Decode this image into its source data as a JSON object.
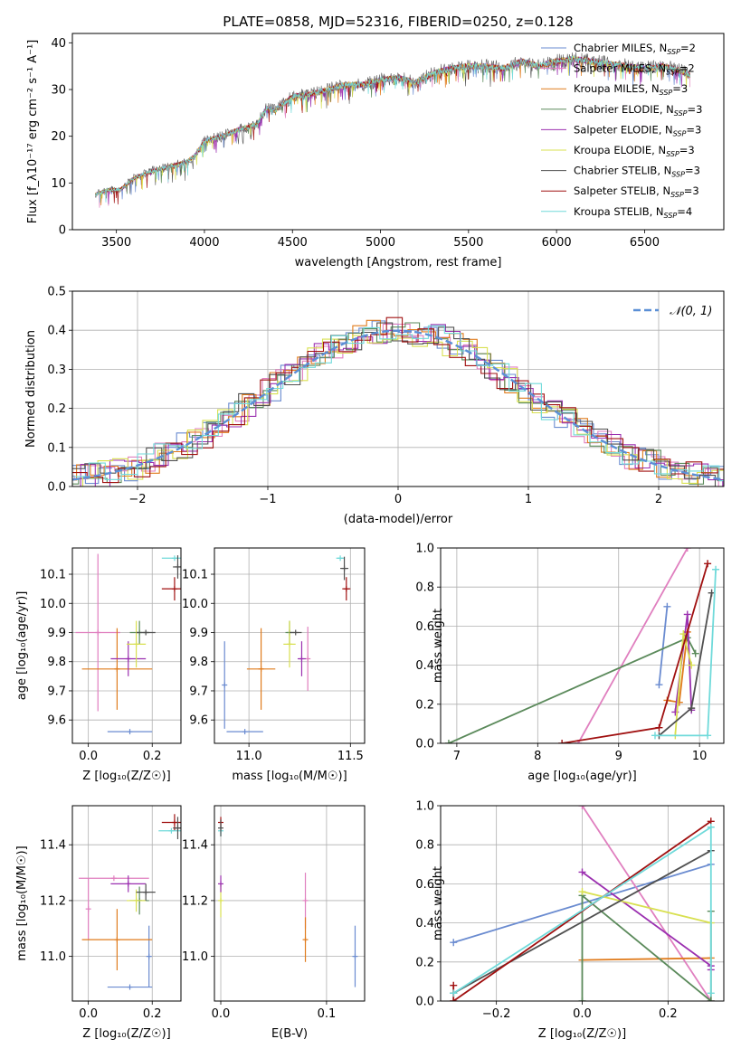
{
  "title": "PLATE=0858, MJD=52316, FIBERID=0250, z=0.128",
  "colors": {
    "chabrier_miles": "#6a8bd0",
    "salpeter_miles": "#e07fbf",
    "kroupa_miles": "#e07b1c",
    "chabrier_elodie": "#5b8a5b",
    "salpeter_elodie": "#9b30b0",
    "kroupa_elodie": "#d8e050",
    "chabrier_stelib": "#505050",
    "salpeter_stelib": "#a01010",
    "kroupa_stelib": "#70dada",
    "gauss": "#5b8fd6",
    "grid": "#b0b0b0"
  },
  "chart_data": [
    {
      "type": "line",
      "panel": "spectrum",
      "title": "PLATE=0858, MJD=52316, FIBERID=0250, z=0.128",
      "xlabel": "wavelength [Angstrom, rest frame]",
      "ylabel": "Flux [f_λ10⁻¹⁷ erg cm⁻² s⁻¹ A⁻¹]",
      "xlim": [
        3250,
        6950
      ],
      "ylim": [
        0,
        42
      ],
      "xticks": [
        3500,
        4000,
        4500,
        5000,
        5500,
        6000,
        6500
      ],
      "yticks": [
        0,
        10,
        20,
        30,
        40
      ],
      "grid": false,
      "legend_position": "top-right",
      "legend": [
        {
          "label": "Chabrier MILES, N",
          "sub": "SSP",
          "tail": "=2",
          "color_key": "chabrier_miles"
        },
        {
          "label": "Salpeter MILES, N",
          "sub": "SSP",
          "tail": "=2",
          "color_key": "salpeter_miles"
        },
        {
          "label": "Kroupa MILES, N",
          "sub": "SSP",
          "tail": "=3",
          "color_key": "kroupa_miles"
        },
        {
          "label": "Chabrier ELODIE, N",
          "sub": "SSP",
          "tail": "=3",
          "color_key": "chabrier_elodie"
        },
        {
          "label": "Salpeter ELODIE, N",
          "sub": "SSP",
          "tail": "=3",
          "color_key": "salpeter_elodie"
        },
        {
          "label": "Kroupa ELODIE, N",
          "sub": "SSP",
          "tail": "=3",
          "color_key": "kroupa_elodie"
        },
        {
          "label": "Chabrier STELIB, N",
          "sub": "SSP",
          "tail": "=3",
          "color_key": "chabrier_stelib"
        },
        {
          "label": "Salpeter STELIB, N",
          "sub": "SSP",
          "tail": "=3",
          "color_key": "salpeter_stelib"
        },
        {
          "label": "Kroupa STELIB, N",
          "sub": "SSP",
          "tail": "=4",
          "color_key": "kroupa_stelib"
        }
      ],
      "continuum": {
        "x": [
          3380,
          3450,
          3520,
          3600,
          3700,
          3800,
          3900,
          3950,
          4000,
          4100,
          4200,
          4300,
          4350,
          4400,
          4500,
          4600,
          4700,
          4800,
          4900,
          5000,
          5100,
          5200,
          5300,
          5400,
          5500,
          5600,
          5700,
          5800,
          5900,
          6000,
          6100,
          6200,
          6300,
          6400,
          6500,
          6600,
          6700,
          6760
        ],
        "y": [
          7.5,
          8.5,
          8.5,
          11,
          12.5,
          13.5,
          14.5,
          16,
          19,
          20,
          21.5,
          22.5,
          26,
          25.5,
          28.5,
          29,
          30,
          31,
          31,
          32,
          32.5,
          31.5,
          33.5,
          34.5,
          35,
          35,
          34.5,
          36,
          35,
          36,
          36.5,
          36,
          35.5,
          35,
          34.5,
          35,
          34,
          33
        ]
      }
    },
    {
      "type": "line",
      "panel": "residual_histogram",
      "xlabel": "(data-model)/error",
      "ylabel": "Normed distribution",
      "xlim": [
        -2.5,
        2.5
      ],
      "ylim": [
        0,
        0.5
      ],
      "xticks": [
        -2,
        -1,
        0,
        1,
        2
      ],
      "yticks": [
        0.0,
        0.1,
        0.2,
        0.3,
        0.4,
        0.5
      ],
      "grid": true,
      "legend_position": "top-right",
      "gauss_label": "𝒩(0, 1)"
    },
    {
      "type": "scatter",
      "panel": "age_vs_Z",
      "xlabel": "Z [log₁₀(Z/Z☉)]",
      "ylabel": "age  [log₁₀(age/yr)]",
      "xlim": [
        -0.05,
        0.29
      ],
      "ylim": [
        9.52,
        10.19
      ],
      "xticks": [
        0.0,
        0.2
      ],
      "yticks": [
        9.6,
        9.7,
        9.8,
        9.9,
        10.0,
        10.1
      ],
      "points": [
        {
          "c": "chabrier_miles",
          "x": 0.13,
          "xerr": 0.07,
          "y": 9.56,
          "yerr": 0
        },
        {
          "c": "salpeter_miles",
          "x": 0.03,
          "xerr": 0.07,
          "y": 9.9,
          "yerr": 0.27
        },
        {
          "c": "kroupa_miles",
          "x": 0.09,
          "xerr": 0.11,
          "y": 9.775,
          "yerr": 0.14
        },
        {
          "c": "chabrier_elodie",
          "x": 0.16,
          "xerr": 0.03,
          "y": 9.9,
          "yerr": 0.04
        },
        {
          "c": "salpeter_elodie",
          "x": 0.125,
          "xerr": 0.055,
          "y": 9.81,
          "yerr": 0.06
        },
        {
          "c": "kroupa_elodie",
          "x": 0.15,
          "xerr": 0.03,
          "y": 9.86,
          "yerr": 0.08
        },
        {
          "c": "chabrier_stelib",
          "x": 0.18,
          "xerr": 0.03,
          "y": 9.9,
          "yerr": 0
        },
        {
          "c": "salpeter_stelib",
          "x": 0.27,
          "xerr": 0.04,
          "y": 10.05,
          "yerr": 0.04
        },
        {
          "c": "kroupa_stelib",
          "x": 0.27,
          "xerr": 0.04,
          "y": 10.155,
          "yerr": 0
        },
        {
          "c": "chabrier_stelib",
          "x": 0.28,
          "xerr": 0.015,
          "y": 10.125,
          "yerr": 0.04
        }
      ]
    },
    {
      "type": "scatter",
      "panel": "age_vs_mass",
      "xlabel": "mass [log₁₀(M/M☉)]",
      "ylabel": "",
      "xlim": [
        10.83,
        11.57
      ],
      "ylim": [
        9.52,
        10.19
      ],
      "xticks": [
        11.0,
        11.5
      ],
      "yticks": [
        9.6,
        9.7,
        9.8,
        9.9,
        10.0,
        10.1
      ],
      "points": [
        {
          "c": "chabrier_miles",
          "x": 10.98,
          "xerr": 0.09,
          "y": 9.56,
          "yerr": 0
        },
        {
          "c": "chabrier_miles",
          "x": 10.88,
          "xerr": 0,
          "y": 9.72,
          "yerr": 0.15
        },
        {
          "c": "salpeter_miles",
          "x": 11.29,
          "xerr": 0,
          "y": 9.81,
          "yerr": 0.11
        },
        {
          "c": "kroupa_miles",
          "x": 11.06,
          "xerr": 0.07,
          "y": 9.775,
          "yerr": 0.14
        },
        {
          "c": "chabrier_elodie",
          "x": 11.2,
          "xerr": 0.02,
          "y": 9.9,
          "yerr": 0.04
        },
        {
          "c": "salpeter_elodie",
          "x": 11.26,
          "xerr": 0.02,
          "y": 9.81,
          "yerr": 0.06
        },
        {
          "c": "kroupa_elodie",
          "x": 11.2,
          "xerr": 0.03,
          "y": 9.86,
          "yerr": 0.08
        },
        {
          "c": "chabrier_stelib",
          "x": 11.23,
          "xerr": 0.03,
          "y": 9.9,
          "yerr": 0
        },
        {
          "c": "salpeter_stelib",
          "x": 11.48,
          "xerr": 0.02,
          "y": 10.05,
          "yerr": 0.04
        },
        {
          "c": "kroupa_stelib",
          "x": 11.45,
          "xerr": 0.02,
          "y": 10.155,
          "yerr": 0
        },
        {
          "c": "chabrier_stelib",
          "x": 11.47,
          "xerr": 0.02,
          "y": 10.12,
          "yerr": 0.04
        }
      ]
    },
    {
      "type": "line",
      "panel": "mass_weight_vs_age",
      "xlabel": "age  [log₁₀(age/yr)]",
      "ylabel": "mass weight",
      "xlim": [
        6.8,
        10.3
      ],
      "ylim": [
        0,
        1
      ],
      "xticks": [
        7,
        8,
        9,
        10
      ],
      "yticks": [
        0.0,
        0.2,
        0.4,
        0.6,
        0.8,
        1.0
      ],
      "series": [
        {
          "c": "chabrier_miles",
          "x": [
            9.5,
            9.6
          ],
          "y": [
            0.3,
            0.7
          ]
        },
        {
          "c": "salpeter_miles",
          "x": [
            8.5,
            9.85
          ],
          "y": [
            0.0,
            1.0
          ]
        },
        {
          "c": "kroupa_miles",
          "x": [
            9.6,
            9.75,
            9.85
          ],
          "y": [
            0.22,
            0.21,
            0.57
          ]
        },
        {
          "c": "chabrier_elodie",
          "x": [
            6.9,
            9.85,
            9.95
          ],
          "y": [
            0.0,
            0.54,
            0.46
          ]
        },
        {
          "c": "salpeter_elodie",
          "x": [
            9.7,
            9.85,
            9.9
          ],
          "y": [
            0.16,
            0.66,
            0.17
          ]
        },
        {
          "c": "kroupa_elodie",
          "x": [
            9.7,
            9.8,
            9.9
          ],
          "y": [
            0.04,
            0.56,
            0.4
          ]
        },
        {
          "c": "chabrier_stelib",
          "x": [
            9.5,
            9.9,
            10.15
          ],
          "y": [
            0.04,
            0.18,
            0.77
          ]
        },
        {
          "c": "salpeter_stelib",
          "x": [
            8.3,
            9.5,
            10.1
          ],
          "y": [
            0.0,
            0.08,
            0.92
          ]
        },
        {
          "c": "kroupa_stelib",
          "x": [
            9.45,
            10.1,
            10.2
          ],
          "y": [
            0.04,
            0.04,
            0.89
          ]
        }
      ]
    },
    {
      "type": "scatter",
      "panel": "mass_vs_Z",
      "xlabel": "Z [log₁₀(Z/Z☉)]",
      "ylabel": "mass [log₁₀(M/M☉)]",
      "xlim": [
        -0.05,
        0.29
      ],
      "ylim": [
        10.84,
        11.54
      ],
      "xticks": [
        0.0,
        0.2
      ],
      "yticks": [
        11.0,
        11.2,
        11.4
      ],
      "points": [
        {
          "c": "chabrier_miles",
          "x": 0.13,
          "xerr": 0.07,
          "y": 10.89,
          "yerr": 0
        },
        {
          "c": "chabrier_miles",
          "x": 0.19,
          "xerr": 0,
          "y": 11.0,
          "yerr": 0.11
        },
        {
          "c": "salpeter_miles",
          "x": 0.08,
          "xerr": 0.11,
          "y": 11.28,
          "yerr": 0
        },
        {
          "c": "salpeter_miles",
          "x": 0.0,
          "xerr": 0,
          "y": 11.17,
          "yerr": 0.11
        },
        {
          "c": "kroupa_miles",
          "x": 0.09,
          "xerr": 0.11,
          "y": 11.06,
          "yerr": 0.11
        },
        {
          "c": "chabrier_elodie",
          "x": 0.16,
          "xerr": 0.03,
          "y": 11.2,
          "yerr": 0.05
        },
        {
          "c": "salpeter_elodie",
          "x": 0.125,
          "xerr": 0.055,
          "y": 11.26,
          "yerr": 0.03
        },
        {
          "c": "kroupa_elodie",
          "x": 0.15,
          "xerr": 0.03,
          "y": 11.2,
          "yerr": 0.04
        },
        {
          "c": "chabrier_stelib",
          "x": 0.18,
          "xerr": 0.03,
          "y": 11.23,
          "yerr": 0.03
        },
        {
          "c": "salpeter_stelib",
          "x": 0.27,
          "xerr": 0.04,
          "y": 11.48,
          "yerr": 0.03
        },
        {
          "c": "kroupa_stelib",
          "x": 0.26,
          "xerr": 0.04,
          "y": 11.45,
          "yerr": 0
        },
        {
          "c": "chabrier_stelib",
          "x": 0.28,
          "xerr": 0.015,
          "y": 11.46,
          "yerr": 0.04
        }
      ]
    },
    {
      "type": "scatter",
      "panel": "mass_vs_EBV",
      "xlabel": "E(B-V)",
      "ylabel": "",
      "xlim": [
        -0.006,
        0.136
      ],
      "ylim": [
        10.84,
        11.54
      ],
      "xticks": [
        0.0,
        0.1
      ],
      "yticks": [
        11.0,
        11.2,
        11.4
      ],
      "points": [
        {
          "c": "chabrier_miles",
          "x": 0.127,
          "xerr": 0,
          "y": 11.0,
          "yerr": 0.11
        },
        {
          "c": "salpeter_miles",
          "x": 0.08,
          "xerr": 0,
          "y": 11.2,
          "yerr": 0.1
        },
        {
          "c": "kroupa_miles",
          "x": 0.08,
          "xerr": 0,
          "y": 11.06,
          "yerr": 0.08
        },
        {
          "c": "kroupa_elodie",
          "x": 0.0,
          "xerr": 0,
          "y": 11.2,
          "yerr": 0.06
        },
        {
          "c": "salpeter_elodie",
          "x": 0.0,
          "xerr": 0,
          "y": 11.26,
          "yerr": 0.03
        },
        {
          "c": "salpeter_stelib",
          "x": 0.0,
          "xerr": 0,
          "y": 11.48,
          "yerr": 0.02
        },
        {
          "c": "kroupa_stelib",
          "x": 0.0,
          "xerr": 0,
          "y": 11.45,
          "yerr": 0.02
        },
        {
          "c": "chabrier_stelib",
          "x": 0.0,
          "xerr": 0,
          "y": 11.46,
          "yerr": 0.03
        }
      ]
    },
    {
      "type": "line",
      "panel": "mass_weight_vs_Z",
      "xlabel": "Z [log₁₀(Z/Z☉)]",
      "ylabel": "mass weight",
      "xlim": [
        -0.33,
        0.33
      ],
      "ylim": [
        0,
        1
      ],
      "xticks": [
        -0.2,
        0.0,
        0.2
      ],
      "yticks": [
        0.0,
        0.2,
        0.4,
        0.6,
        0.8,
        1.0
      ],
      "series": [
        {
          "c": "chabrier_miles",
          "x": [
            -0.3,
            0.3
          ],
          "y": [
            0.3,
            0.7
          ]
        },
        {
          "c": "salpeter_miles",
          "x": [
            0.0,
            0.3
          ],
          "y": [
            1.0,
            0.0
          ]
        },
        {
          "c": "kroupa_miles",
          "x": [
            0.0,
            0.3
          ],
          "y": [
            0.21,
            0.22
          ]
        },
        {
          "c": "chabrier_elodie",
          "x": [
            0.0,
            0.0,
            0.3,
            0.3
          ],
          "y": [
            0.0,
            0.54,
            0.0,
            0.46
          ]
        },
        {
          "c": "salpeter_elodie",
          "x": [
            0.0,
            0.3,
            0.3
          ],
          "y": [
            0.66,
            0.18,
            0.16
          ]
        },
        {
          "c": "kroupa_elodie",
          "x": [
            0.0,
            0.3
          ],
          "y": [
            0.56,
            0.4
          ]
        },
        {
          "c": "chabrier_stelib",
          "x": [
            -0.3,
            0.3
          ],
          "y": [
            0.04,
            0.77
          ]
        },
        {
          "c": "salpeter_stelib",
          "x": [
            -0.3,
            -0.3,
            0.3
          ],
          "y": [
            0.08,
            0.0,
            0.92
          ]
        },
        {
          "c": "kroupa_stelib",
          "x": [
            -0.3,
            0.3,
            0.3
          ],
          "y": [
            0.04,
            0.89,
            0.04
          ]
        }
      ]
    }
  ]
}
